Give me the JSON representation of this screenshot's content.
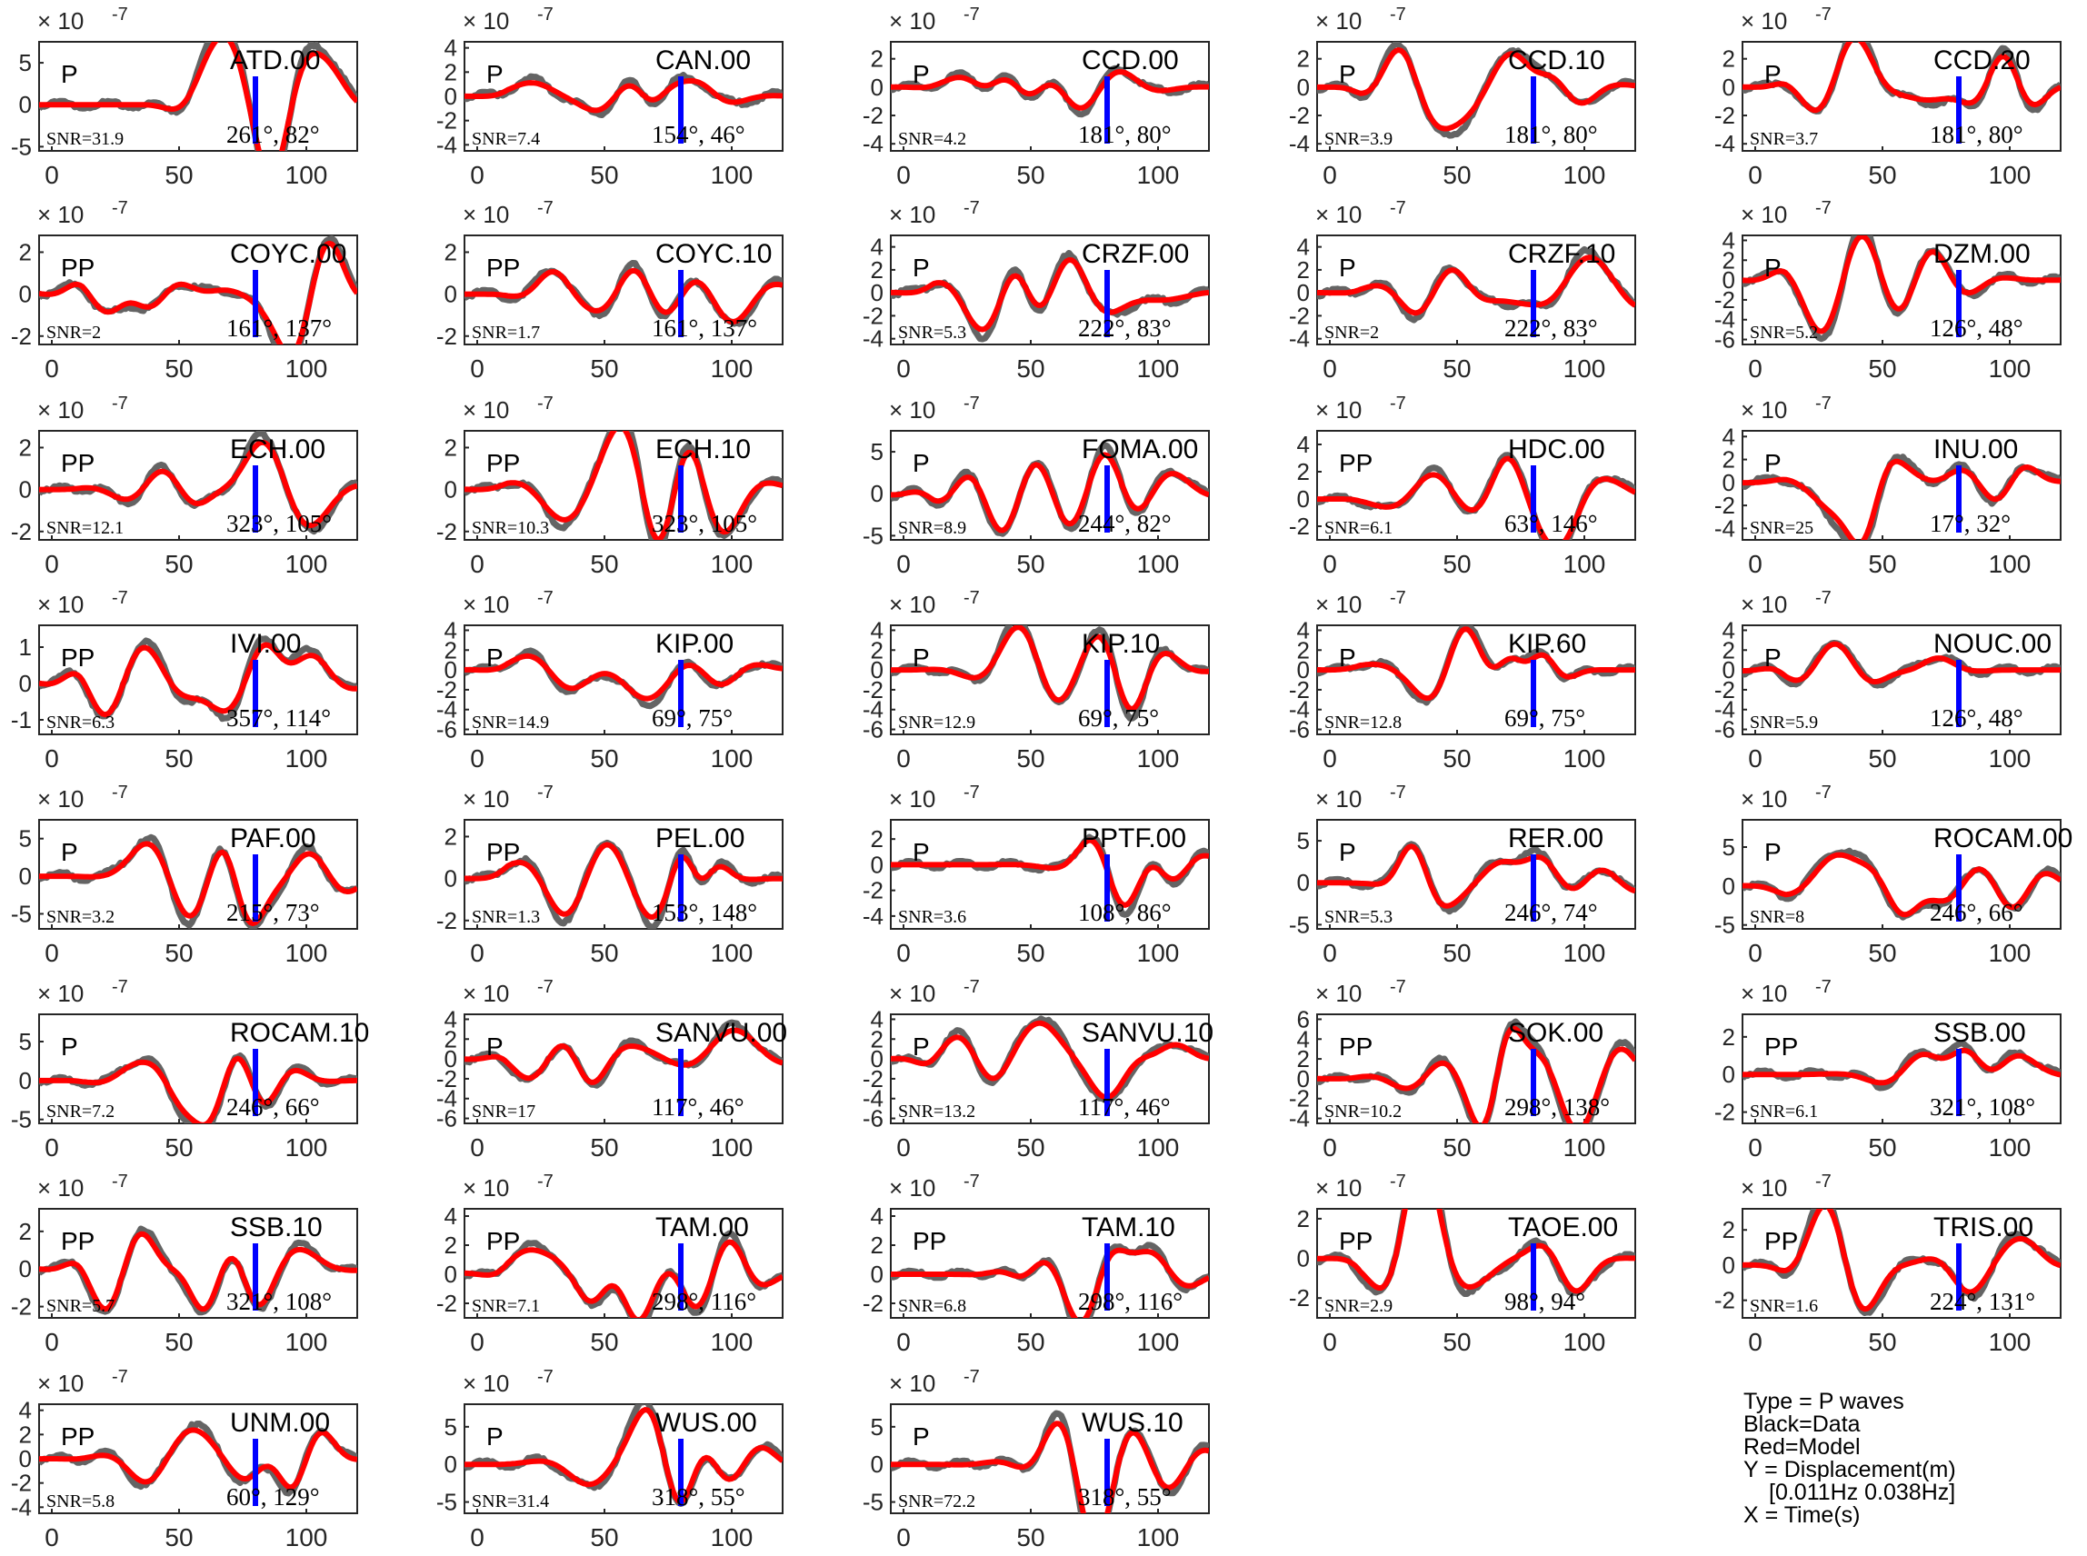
{
  "chart_data": {
    "type": "line",
    "exponent_label": "× 10",
    "exponent_power": "-7",
    "xlim": [
      -5,
      120
    ],
    "xticks": [
      0,
      50,
      100
    ],
    "data_color": "#646464",
    "model_color": "#ff0000",
    "marker_color": "#0000ff",
    "marker_time": 80,
    "panels": [
      {
        "station": "ATD.00",
        "phase": "P",
        "snr": "SNR=31.9",
        "angles": "261°, 82°",
        "yticks": [
          -5,
          0,
          5
        ],
        "ylim": [
          -5.5,
          7.5
        ],
        "seed": 1
      },
      {
        "station": "CAN.00",
        "phase": "P",
        "snr": "SNR=7.4",
        "angles": "154°, 46°",
        "yticks": [
          -4,
          -2,
          0,
          2,
          4
        ],
        "ylim": [
          -4.5,
          4.5
        ],
        "seed": 2
      },
      {
        "station": "CCD.00",
        "phase": "P",
        "snr": "SNR=4.2",
        "angles": "181°, 80°",
        "yticks": [
          -4,
          -2,
          0,
          2
        ],
        "ylim": [
          -4.5,
          3.2
        ],
        "seed": 3
      },
      {
        "station": "CCD.10",
        "phase": "P",
        "snr": "SNR=3.9",
        "angles": "181°, 80°",
        "yticks": [
          -4,
          -2,
          0,
          2
        ],
        "ylim": [
          -4.5,
          3.2
        ],
        "seed": 4
      },
      {
        "station": "CCD.20",
        "phase": "P",
        "snr": "SNR=3.7",
        "angles": "181°, 80°",
        "yticks": [
          -4,
          -2,
          0,
          2
        ],
        "ylim": [
          -4.5,
          3.2
        ],
        "seed": 5
      },
      {
        "station": "COYC.00",
        "phase": "PP",
        "snr": "SNR=2",
        "angles": "161°, 137°",
        "yticks": [
          -2,
          0,
          2
        ],
        "ylim": [
          -2.4,
          2.8
        ],
        "seed": 6
      },
      {
        "station": "COYC.10",
        "phase": "PP",
        "snr": "SNR=1.7",
        "angles": "161°, 137°",
        "yticks": [
          -2,
          0,
          2
        ],
        "ylim": [
          -2.4,
          2.8
        ],
        "seed": 7
      },
      {
        "station": "CRZF.00",
        "phase": "P",
        "snr": "SNR=5.3",
        "angles": "222°, 83°",
        "yticks": [
          -4,
          -2,
          0,
          2,
          4
        ],
        "ylim": [
          -4.5,
          5
        ],
        "seed": 8
      },
      {
        "station": "CRZF.10",
        "phase": "P",
        "snr": "SNR=2",
        "angles": "222°, 83°",
        "yticks": [
          -4,
          -2,
          0,
          2,
          4
        ],
        "ylim": [
          -4.5,
          5
        ],
        "seed": 9
      },
      {
        "station": "DZM.00",
        "phase": "P",
        "snr": "SNR=5.2",
        "angles": "126°, 48°",
        "yticks": [
          -6,
          -4,
          -2,
          0,
          2,
          4
        ],
        "ylim": [
          -6.5,
          4.5
        ],
        "seed": 10
      },
      {
        "station": "ECH.00",
        "phase": "PP",
        "snr": "SNR=12.1",
        "angles": "323°, 105°",
        "yticks": [
          -2,
          0,
          2
        ],
        "ylim": [
          -2.4,
          2.8
        ],
        "seed": 11
      },
      {
        "station": "ECH.10",
        "phase": "PP",
        "snr": "SNR=10.3",
        "angles": "323°, 105°",
        "yticks": [
          -2,
          0,
          2
        ],
        "ylim": [
          -2.4,
          2.8
        ],
        "seed": 12
      },
      {
        "station": "FOMA.00",
        "phase": "P",
        "snr": "SNR=8.9",
        "angles": "244°, 82°",
        "yticks": [
          -5,
          0,
          5
        ],
        "ylim": [
          -5.5,
          7.5
        ],
        "seed": 13
      },
      {
        "station": "HDC.00",
        "phase": "PP",
        "snr": "SNR=6.1",
        "angles": "63°, 146°",
        "yticks": [
          -2,
          0,
          2,
          4
        ],
        "ylim": [
          -3,
          5
        ],
        "seed": 14
      },
      {
        "station": "INU.00",
        "phase": "P",
        "snr": "SNR=25",
        "angles": "17°, 32°",
        "yticks": [
          -4,
          -2,
          0,
          2,
          4
        ],
        "ylim": [
          -5,
          4.5
        ],
        "seed": 15
      },
      {
        "station": "IVI.00",
        "phase": "PP",
        "snr": "SNR=6.3",
        "angles": "357°, 114°",
        "yticks": [
          -1,
          0,
          1
        ],
        "ylim": [
          -1.4,
          1.6
        ],
        "seed": 16
      },
      {
        "station": "KIP.00",
        "phase": "P",
        "snr": "SNR=14.9",
        "angles": "69°, 75°",
        "yticks": [
          -6,
          -4,
          -2,
          0,
          2,
          4
        ],
        "ylim": [
          -6.5,
          4.5
        ],
        "seed": 17
      },
      {
        "station": "KIP.10",
        "phase": "P",
        "snr": "SNR=12.9",
        "angles": "69°, 75°",
        "yticks": [
          -6,
          -4,
          -2,
          0,
          2,
          4
        ],
        "ylim": [
          -6.5,
          4.5
        ],
        "seed": 18
      },
      {
        "station": "KIP.60",
        "phase": "P",
        "snr": "SNR=12.8",
        "angles": "69°, 75°",
        "yticks": [
          -6,
          -4,
          -2,
          0,
          2,
          4
        ],
        "ylim": [
          -6.5,
          4.5
        ],
        "seed": 19
      },
      {
        "station": "NOUC.00",
        "phase": "P",
        "snr": "SNR=5.9",
        "angles": "126°, 48°",
        "yticks": [
          -6,
          -4,
          -2,
          0,
          2,
          4
        ],
        "ylim": [
          -6.5,
          4.5
        ],
        "seed": 20
      },
      {
        "station": "PAF.00",
        "phase": "P",
        "snr": "SNR=3.2",
        "angles": "215°, 73°",
        "yticks": [
          -5,
          0,
          5
        ],
        "ylim": [
          -7,
          7.5
        ],
        "seed": 21
      },
      {
        "station": "PEL.00",
        "phase": "PP",
        "snr": "SNR=1.3",
        "angles": "153°, 148°",
        "yticks": [
          -2,
          0,
          2
        ],
        "ylim": [
          -2.4,
          2.8
        ],
        "seed": 22
      },
      {
        "station": "PPTF.00",
        "phase": "P",
        "snr": "SNR=3.6",
        "angles": "108°, 86°",
        "yticks": [
          -4,
          -2,
          0,
          2
        ],
        "ylim": [
          -5,
          3.5
        ],
        "seed": 23
      },
      {
        "station": "RER.00",
        "phase": "P",
        "snr": "SNR=5.3",
        "angles": "246°, 74°",
        "yticks": [
          -5,
          0,
          5
        ],
        "ylim": [
          -5.5,
          7.5
        ],
        "seed": 24
      },
      {
        "station": "ROCAM.00",
        "phase": "P",
        "snr": "SNR=8",
        "angles": "246°, 66°",
        "yticks": [
          -5,
          0,
          5
        ],
        "ylim": [
          -5.5,
          8.5
        ],
        "seed": 25
      },
      {
        "station": "ROCAM.10",
        "phase": "P",
        "snr": "SNR=7.2",
        "angles": "246°, 66°",
        "yticks": [
          -5,
          0,
          5
        ],
        "ylim": [
          -5.5,
          8.5
        ],
        "seed": 26
      },
      {
        "station": "SANVU.00",
        "phase": "P",
        "snr": "SNR=17",
        "angles": "117°, 46°",
        "yticks": [
          -6,
          -4,
          -2,
          0,
          2,
          4
        ],
        "ylim": [
          -6.5,
          4.5
        ],
        "seed": 27
      },
      {
        "station": "SANVU.10",
        "phase": "P",
        "snr": "SNR=13.2",
        "angles": "117°, 46°",
        "yticks": [
          -6,
          -4,
          -2,
          0,
          2,
          4
        ],
        "ylim": [
          -6.5,
          4.5
        ],
        "seed": 28
      },
      {
        "station": "SOK.00",
        "phase": "PP",
        "snr": "SNR=10.2",
        "angles": "298°, 138°",
        "yticks": [
          -4,
          -2,
          0,
          2,
          4,
          6
        ],
        "ylim": [
          -4.5,
          6.5
        ],
        "seed": 29
      },
      {
        "station": "SSB.00",
        "phase": "PP",
        "snr": "SNR=6.1",
        "angles": "321°, 108°",
        "yticks": [
          -2,
          0,
          2
        ],
        "ylim": [
          -2.6,
          3.2
        ],
        "seed": 30
      },
      {
        "station": "SSB.10",
        "phase": "PP",
        "snr": "SNR=5.7",
        "angles": "321°, 108°",
        "yticks": [
          -2,
          0,
          2
        ],
        "ylim": [
          -2.6,
          3.2
        ],
        "seed": 31
      },
      {
        "station": "TAM.00",
        "phase": "PP",
        "snr": "SNR=7.1",
        "angles": "298°, 116°",
        "yticks": [
          -2,
          0,
          2,
          4
        ],
        "ylim": [
          -3,
          4.5
        ],
        "seed": 32
      },
      {
        "station": "TAM.10",
        "phase": "PP",
        "snr": "SNR=6.8",
        "angles": "298°, 116°",
        "yticks": [
          -2,
          0,
          2,
          4
        ],
        "ylim": [
          -3,
          4.5
        ],
        "seed": 33
      },
      {
        "station": "TAOE.00",
        "phase": "PP",
        "snr": "SNR=2.9",
        "angles": "98°, 94°",
        "yticks": [
          -2,
          0,
          2
        ],
        "ylim": [
          -3,
          2.5
        ],
        "seed": 34
      },
      {
        "station": "TRIS.00",
        "phase": "PP",
        "snr": "SNR=1.6",
        "angles": "224°, 131°",
        "yticks": [
          -2,
          0,
          2
        ],
        "ylim": [
          -3,
          3.2
        ],
        "seed": 35
      },
      {
        "station": "UNM.00",
        "phase": "PP",
        "snr": "SNR=5.8",
        "angles": "60°, 129°",
        "yticks": [
          -4,
          -2,
          0,
          2,
          4
        ],
        "ylim": [
          -4.5,
          4.5
        ],
        "seed": 36
      },
      {
        "station": "WUS.00",
        "phase": "P",
        "snr": "SNR=31.4",
        "angles": "318°, 55°",
        "yticks": [
          -5,
          0,
          5
        ],
        "ylim": [
          -6.5,
          8
        ],
        "seed": 37
      },
      {
        "station": "WUS.10",
        "phase": "P",
        "snr": "SNR=72.2",
        "angles": "318°, 55°",
        "yticks": [
          -5,
          0,
          5
        ],
        "ylim": [
          -6.5,
          8
        ],
        "seed": 38
      }
    ]
  },
  "legend": {
    "line1": "Type = P waves",
    "line2": "Black=Data",
    "line3": "Red=Model",
    "line4": "Y = Displacement(m)",
    "line5": "[0.011Hz 0.038Hz]",
    "line6": "X = Time(s)"
  }
}
